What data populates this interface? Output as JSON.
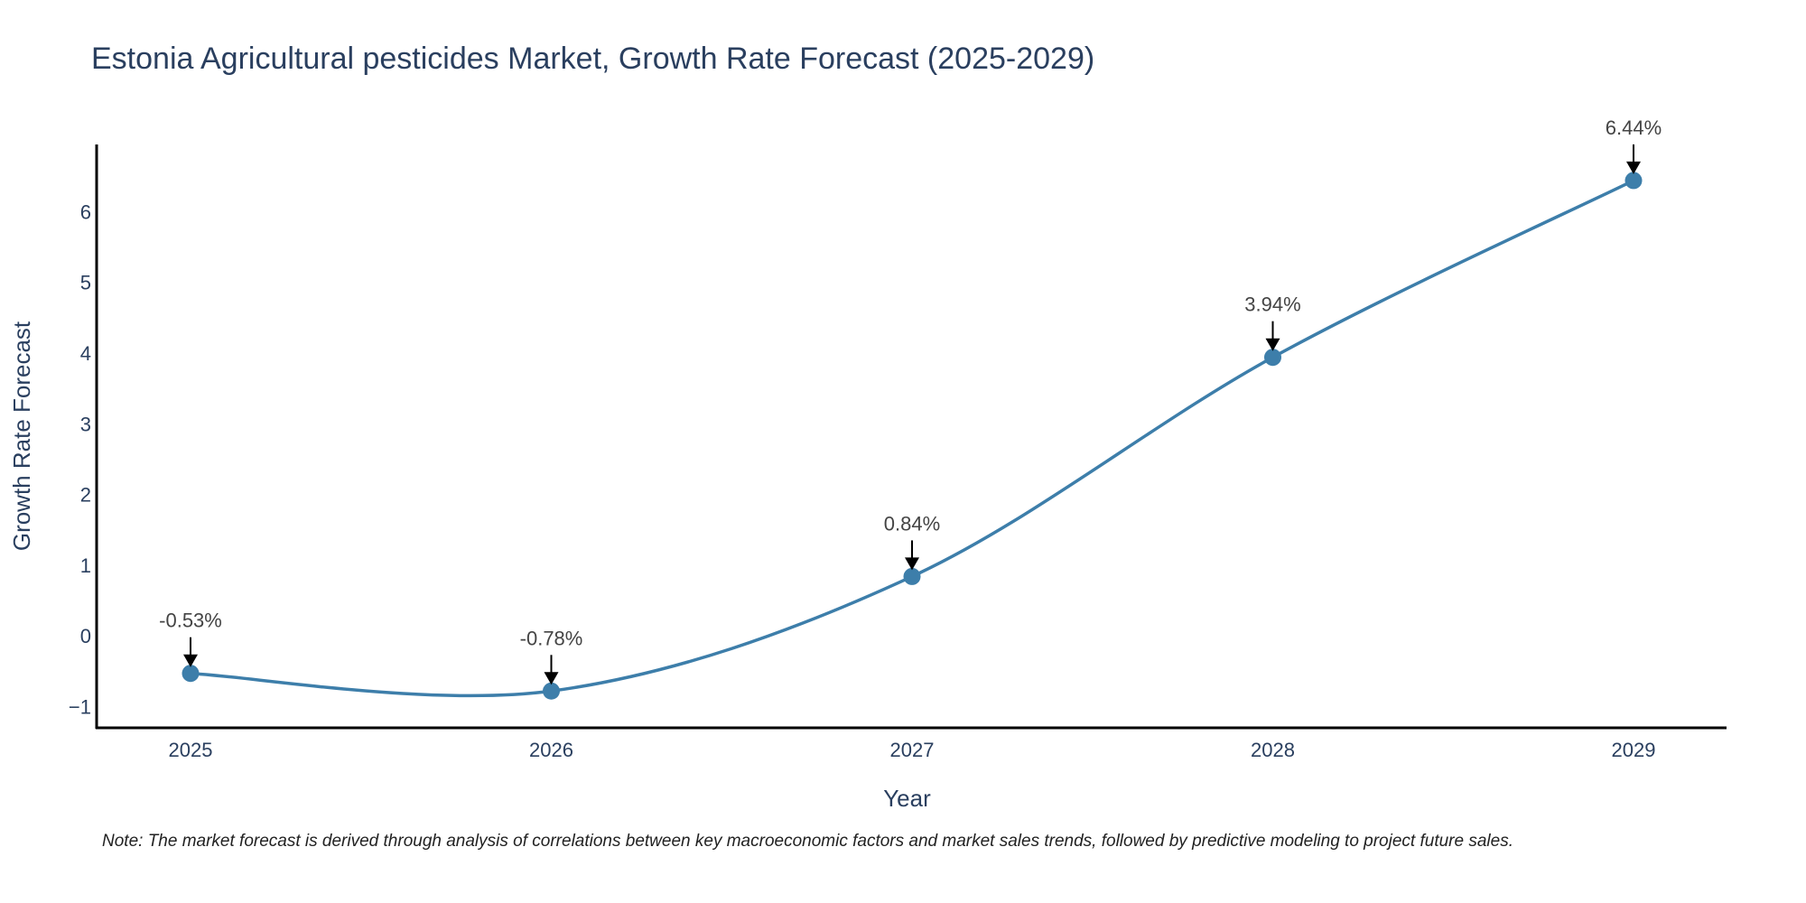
{
  "chart_data": {
    "type": "line",
    "title": "Estonia Agricultural pesticides Market, Growth Rate Forecast (2025-2029)",
    "xlabel": "Year",
    "ylabel": "Growth Rate Forecast",
    "categories": [
      "2025",
      "2026",
      "2027",
      "2028",
      "2029"
    ],
    "values": [
      -0.53,
      -0.78,
      0.84,
      3.94,
      6.44
    ],
    "data_labels": [
      "-0.53%",
      "-0.78%",
      "0.84%",
      "3.94%",
      "6.44%"
    ],
    "y_ticks": [
      -1,
      0,
      1,
      2,
      3,
      4,
      5,
      6
    ],
    "y_tick_labels": [
      "−1",
      "0",
      "1",
      "2",
      "3",
      "4",
      "5",
      "6"
    ],
    "ylim": [
      -1.3,
      6.95
    ],
    "grid": false,
    "line_color": "#3d7eaa",
    "marker_color": "#3d7eaa",
    "axis_color": "#000000",
    "text_color": "#2a3f5f"
  },
  "note": "Note: The market forecast is derived through analysis of correlations between key macroeconomic factors and market sales trends, followed by predictive modeling to project future sales."
}
